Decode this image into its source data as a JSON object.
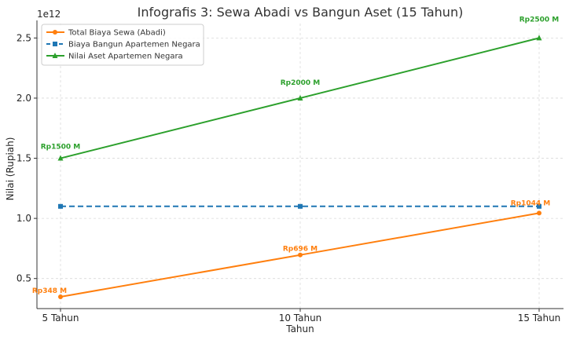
{
  "chart_data": {
    "type": "line",
    "title": "Infografis 3: Sewa Abadi vs Bangun Aset (15 Tahun)",
    "xlabel": "Tahun",
    "ylabel": "Nilai (Rupiah)",
    "y_offset_label": "1e12",
    "categories": [
      "5 Tahun",
      "10 Tahun",
      "15 Tahun"
    ],
    "yticks": [
      "0.5",
      "1.0",
      "1.5",
      "2.0",
      "2.5"
    ],
    "ytick_values": [
      0.5,
      1.0,
      1.5,
      2.0,
      2.5
    ],
    "ylim": [
      0.25,
      2.62
    ],
    "grid": true,
    "legend_position": "top-left",
    "series": [
      {
        "name": "Total Biaya Sewa (Abadi)",
        "values": [
          0.348,
          0.696,
          1.044
        ],
        "color": "#ff7f0e",
        "line_style": "solid",
        "marker": "circle",
        "labels": [
          "Rp348 M",
          "Rp696 M",
          "Rp1044 M"
        ]
      },
      {
        "name": "Biaya Bangun Apartemen Negara",
        "values": [
          1.1,
          1.1,
          1.1
        ],
        "color": "#1f77b4",
        "line_style": "dashed",
        "marker": "square",
        "labels": []
      },
      {
        "name": "Nilai Aset Apartemen Negara",
        "values": [
          1.5,
          2.0,
          2.5
        ],
        "color": "#2ca02c",
        "line_style": "solid",
        "marker": "triangle",
        "labels": [
          "Rp1500 M",
          "Rp2000 M",
          "Rp2500 M"
        ]
      }
    ]
  }
}
